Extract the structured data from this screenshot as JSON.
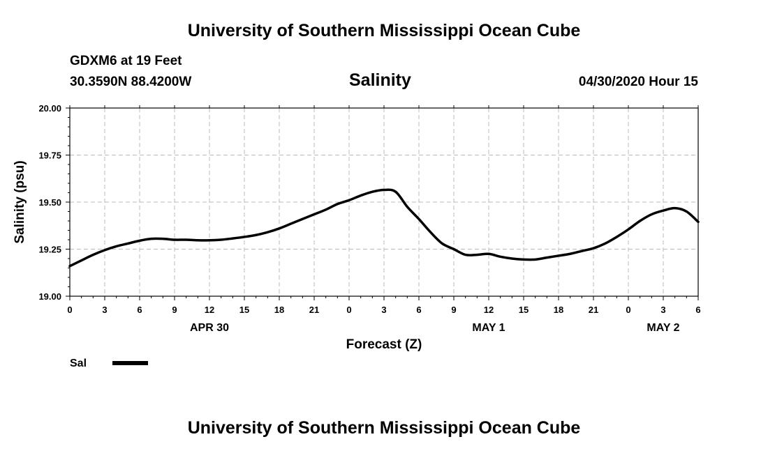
{
  "header": {
    "title": "University of Southern Mississippi Ocean Cube",
    "station": "GDXM6 at 19 Feet",
    "coordinates": "30.3590N 88.4200W",
    "variable": "Salinity",
    "datetime": "04/30/2020 Hour 15"
  },
  "footer": {
    "title": "University of Southern Mississippi Ocean Cube"
  },
  "chart_data": {
    "type": "line",
    "ylabel": "Salinity (psu)",
    "xlabel": "Forecast (Z)",
    "ylim": [
      19.0,
      20.0
    ],
    "y_ticks": [
      "19.00",
      "19.25",
      "19.50",
      "19.75",
      "20.00"
    ],
    "xlim": [
      0,
      54
    ],
    "x_tick_labels": [
      "0",
      "3",
      "6",
      "9",
      "12",
      "15",
      "18",
      "21",
      "0",
      "3",
      "6",
      "9",
      "12",
      "15",
      "18",
      "21",
      "0",
      "3",
      "6"
    ],
    "day_labels": [
      {
        "label": "APR 30",
        "at_hour": 12
      },
      {
        "label": "MAY 1",
        "at_hour": 36
      },
      {
        "label": "MAY 2",
        "at_hour": 51
      }
    ],
    "grid": true,
    "legend": {
      "position": "bottom-left",
      "entries": [
        "Sal"
      ]
    },
    "series": [
      {
        "name": "Sal",
        "color": "#000000",
        "x": [
          0,
          1,
          2,
          3,
          4,
          5,
          6,
          7,
          8,
          9,
          10,
          11,
          12,
          13,
          14,
          15,
          16,
          17,
          18,
          19,
          20,
          21,
          22,
          23,
          24,
          25,
          26,
          27,
          28,
          29,
          30,
          31,
          32,
          33,
          34,
          35,
          36,
          37,
          38,
          39,
          40,
          41,
          42,
          43,
          44,
          45,
          46,
          47,
          48,
          49,
          50,
          51,
          52,
          53,
          54
        ],
        "values": [
          19.16,
          19.19,
          19.22,
          19.245,
          19.265,
          19.28,
          19.295,
          19.305,
          19.305,
          19.3,
          19.3,
          19.297,
          19.297,
          19.3,
          19.307,
          19.315,
          19.325,
          19.34,
          19.36,
          19.385,
          19.41,
          19.435,
          19.46,
          19.49,
          19.51,
          19.535,
          19.555,
          19.565,
          19.555,
          19.475,
          19.41,
          19.34,
          19.28,
          19.25,
          19.22,
          19.22,
          19.225,
          19.21,
          19.2,
          19.195,
          19.195,
          19.205,
          19.215,
          19.225,
          19.24,
          19.255,
          19.28,
          19.315,
          19.355,
          19.4,
          19.435,
          19.455,
          19.468,
          19.45,
          19.395
        ]
      }
    ]
  }
}
